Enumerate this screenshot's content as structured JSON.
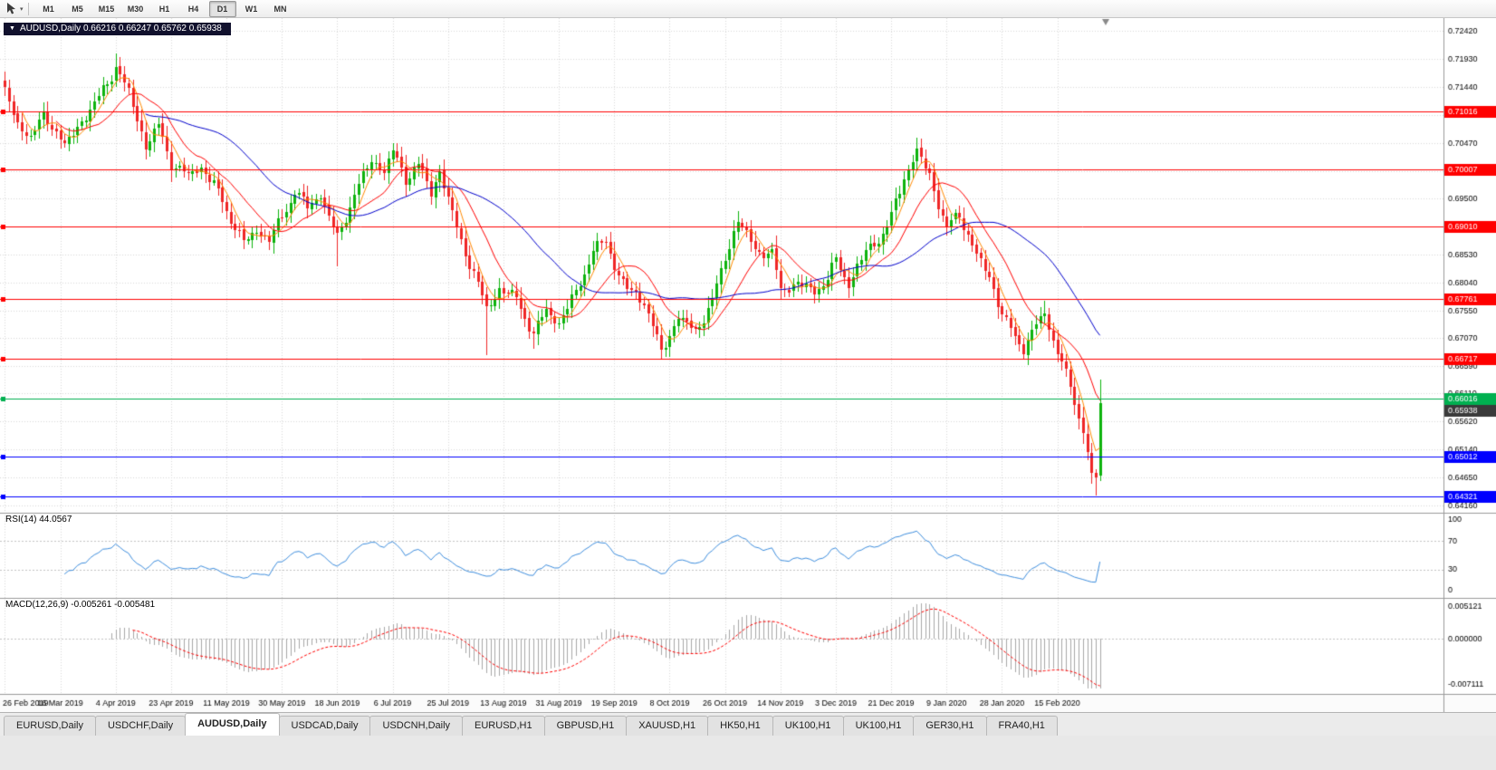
{
  "toolbar": {
    "tool_caret": "▾",
    "timeframes": [
      "M1",
      "M5",
      "M15",
      "M30",
      "H1",
      "H4",
      "D1",
      "W1",
      "MN"
    ],
    "active_timeframe": "D1"
  },
  "chart": {
    "marker": "▼",
    "header": "AUDUSD,Daily 0.66216 0.66247 0.65762 0.65938"
  },
  "chart_data": {
    "type": "candlestick",
    "symbol": "AUDUSD",
    "timeframe": "Daily",
    "ohlc": {
      "open": "0.66216",
      "high": "0.66247",
      "low": "0.65762",
      "close": "0.65938"
    },
    "price_axis_labels": [
      "0.72420",
      "0.71930",
      "0.71440",
      "0.70960",
      "0.70470",
      "0.69980",
      "0.69500",
      "0.69010",
      "0.68530",
      "0.68040",
      "0.67550",
      "0.67070",
      "0.66590",
      "0.66110",
      "0.65620",
      "0.65140",
      "0.64650",
      "0.64160"
    ],
    "price_range": {
      "top": 0.7242,
      "bottom": 0.6416
    },
    "date_labels": [
      "26 Feb 2019",
      "16 Mar 2019",
      "4 Apr 2019",
      "23 Apr 2019",
      "11 May 2019",
      "30 May 2019",
      "18 Jun 2019",
      "6 Jul 2019",
      "25 Jul 2019",
      "13 Aug 2019",
      "31 Aug 2019",
      "19 Sep 2019",
      "8 Oct 2019",
      "26 Oct 2019",
      "14 Nov 2019",
      "3 Dec 2019",
      "21 Dec 2019",
      "9 Jan 2020",
      "28 Jan 2020",
      "15 Feb 2020"
    ],
    "bars": 258,
    "bars_per_tick": 13,
    "levels": [
      {
        "price": 0.71016,
        "label": "0.71016",
        "color": "#ff0000"
      },
      {
        "price": 0.70007,
        "label": "0.70007",
        "color": "#ff0000"
      },
      {
        "price": 0.6901,
        "label": "0.69010",
        "color": "#ff0000"
      },
      {
        "price": 0.67761,
        "label": "0.67761",
        "color": "#ff0000"
      },
      {
        "price": 0.66717,
        "label": "0.66717",
        "color": "#ff0000"
      },
      {
        "price": 0.66016,
        "label": "0.66016",
        "color": "#00b050"
      },
      {
        "price": 0.65012,
        "label": "0.65012",
        "color": "#0000ff"
      },
      {
        "price": 0.64321,
        "label": "0.64321",
        "color": "#0000ff"
      }
    ],
    "current_price": {
      "label": "0.65938",
      "value": 0.65938,
      "color": "#3a3a3a"
    },
    "anchors": [
      [
        0,
        0.7135
      ],
      [
        3,
        0.7078
      ],
      [
        6,
        0.706
      ],
      [
        9,
        0.7092
      ],
      [
        12,
        0.707
      ],
      [
        14,
        0.704
      ],
      [
        18,
        0.7085
      ],
      [
        22,
        0.7125
      ],
      [
        26,
        0.718
      ],
      [
        29,
        0.7135
      ],
      [
        33,
        0.7042
      ],
      [
        36,
        0.7075
      ],
      [
        39,
        0.7012
      ],
      [
        43,
        0.699
      ],
      [
        46,
        0.7005
      ],
      [
        49,
        0.6975
      ],
      [
        52,
        0.693
      ],
      [
        56,
        0.6872
      ],
      [
        59,
        0.6895
      ],
      [
        62,
        0.6878
      ],
      [
        65,
        0.6918
      ],
      [
        68,
        0.6962
      ],
      [
        71,
        0.6935
      ],
      [
        74,
        0.6958
      ],
      [
        78,
        0.688
      ],
      [
        82,
        0.6958
      ],
      [
        86,
        0.7018
      ],
      [
        89,
        0.6998
      ],
      [
        91,
        0.7032
      ],
      [
        94,
        0.6985
      ],
      [
        97,
        0.7008
      ],
      [
        100,
        0.6962
      ],
      [
        102,
        0.6998
      ],
      [
        106,
        0.6898
      ],
      [
        110,
        0.6818
      ],
      [
        113,
        0.676
      ],
      [
        116,
        0.6792
      ],
      [
        120,
        0.6778
      ],
      [
        124,
        0.6712
      ],
      [
        127,
        0.6758
      ],
      [
        130,
        0.6732
      ],
      [
        134,
        0.6788
      ],
      [
        138,
        0.6858
      ],
      [
        141,
        0.6878
      ],
      [
        143,
        0.6832
      ],
      [
        146,
        0.6792
      ],
      [
        150,
        0.6772
      ],
      [
        154,
        0.6682
      ],
      [
        158,
        0.6745
      ],
      [
        162,
        0.6718
      ],
      [
        166,
        0.6772
      ],
      [
        169,
        0.6848
      ],
      [
        172,
        0.6912
      ],
      [
        176,
        0.6862
      ],
      [
        180,
        0.6852
      ],
      [
        182,
        0.6792
      ],
      [
        186,
        0.6802
      ],
      [
        190,
        0.6788
      ],
      [
        193,
        0.6812
      ],
      [
        195,
        0.6842
      ],
      [
        198,
        0.6802
      ],
      [
        202,
        0.6858
      ],
      [
        205,
        0.6878
      ],
      [
        208,
        0.6918
      ],
      [
        211,
        0.6988
      ],
      [
        214,
        0.7032
      ],
      [
        217,
        0.699
      ],
      [
        219,
        0.6942
      ],
      [
        221,
        0.69
      ],
      [
        224,
        0.6922
      ],
      [
        228,
        0.6852
      ],
      [
        231,
        0.6812
      ],
      [
        234,
        0.6752
      ],
      [
        237,
        0.6705
      ],
      [
        239,
        0.6692
      ],
      [
        242,
        0.6732
      ],
      [
        244,
        0.6748
      ],
      [
        246,
        0.6702
      ],
      [
        249,
        0.6652
      ],
      [
        251,
        0.659
      ],
      [
        253,
        0.6545
      ],
      [
        254,
        0.651
      ],
      [
        255,
        0.647
      ],
      [
        256,
        0.6465
      ],
      [
        257,
        0.6594
      ]
    ],
    "spikes": [
      [
        26,
        "h",
        0.7203
      ],
      [
        56,
        "l",
        0.6864
      ],
      [
        78,
        "l",
        0.6832
      ],
      [
        91,
        "h",
        0.7046
      ],
      [
        113,
        "l",
        0.6677
      ],
      [
        124,
        "l",
        0.6689
      ],
      [
        154,
        "l",
        0.6671
      ],
      [
        172,
        "h",
        0.6929
      ],
      [
        214,
        "h",
        0.704
      ],
      [
        244,
        "h",
        0.6772
      ],
      [
        256,
        "l",
        0.6434
      ],
      [
        257,
        "f",
        0.6458
      ],
      [
        257,
        "h",
        0.6601
      ]
    ],
    "candle_colors": {
      "bull": "#0db30d",
      "bear": "#ef2626"
    },
    "moving_averages": [
      {
        "type": "sma",
        "period": 5,
        "color": "#ff8a00"
      },
      {
        "type": "sma",
        "period": 13,
        "color": "#ff0000"
      },
      {
        "type": "sma",
        "period": 34,
        "color": "#0000cc"
      }
    ],
    "rsi": {
      "header": "RSI(14) 44.0567",
      "period": 14,
      "value": 44.0567,
      "color": "#3e8ede",
      "axis_labels": [
        "100",
        "70",
        "30",
        "0"
      ],
      "axis_values": [
        100,
        70,
        30,
        0
      ],
      "level_lines": [
        70,
        30
      ]
    },
    "macd": {
      "header": "MACD(12,26,9) -0.005261 -0.005481",
      "fast": 12,
      "slow": 26,
      "signal": 9,
      "macd_value": -0.005261,
      "signal_value": -0.005481,
      "axis_labels": [
        "0.005121",
        "0.000000",
        "-0.007111"
      ],
      "range": {
        "max": 0.005121,
        "min": -0.007111
      },
      "histogram_color": "#a8a8a8",
      "signal_color": "#ff0000"
    },
    "grid_color": "#d9d9d9",
    "chart_shift_marker": true
  },
  "tabs": {
    "active_index": 2,
    "items": [
      "EURUSD,Daily",
      "USDCHF,Daily",
      "AUDUSD,Daily",
      "USDCAD,Daily",
      "USDCNH,Daily",
      "EURUSD,H1",
      "GBPUSD,H1",
      "XAUUSD,H1",
      "HK50,H1",
      "UK100,H1",
      "UK100,H1",
      "GER30,H1",
      "FRA40,H1"
    ]
  }
}
